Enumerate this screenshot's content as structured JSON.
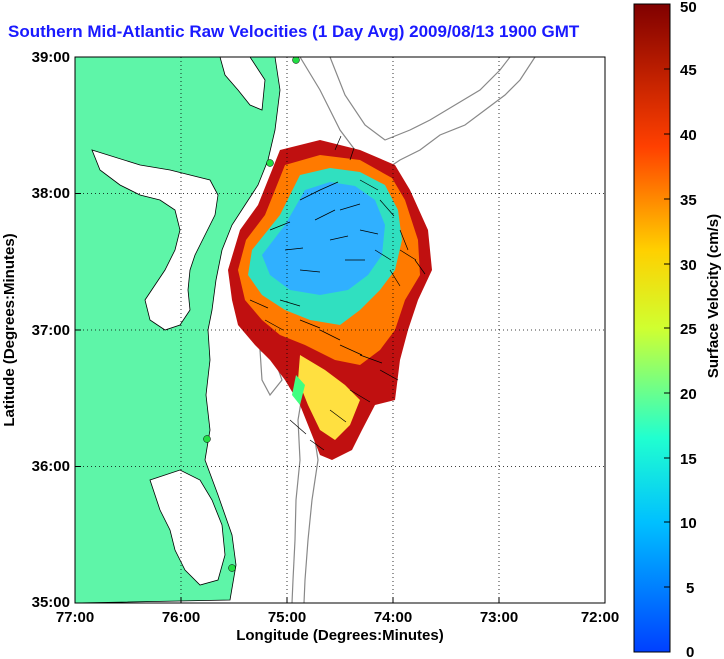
{
  "title": "Southern Mid-Atlantic Raw Velocities (1 Day Avg) 2009/08/13 1900 GMT",
  "map": {
    "x_axis": {
      "label": "Longitude (Degrees:Minutes)",
      "ticks": [
        "77:00",
        "76:00",
        "75:00",
        "74:00",
        "73:00",
        "72:00"
      ]
    },
    "y_axis": {
      "label": "Latitude (Degrees:Minutes)",
      "ticks": [
        "39:00",
        "38:00",
        "37:00",
        "36:00",
        "35:00"
      ]
    },
    "land_color": "#5ef5a8",
    "ocean_color": "#ffffff",
    "grid": "dotted"
  },
  "colorbar": {
    "label": "Surface Velocity (cm/s)",
    "ticks": [
      "50",
      "45",
      "40",
      "35",
      "30",
      "25",
      "20",
      "15",
      "10",
      "5",
      "0"
    ],
    "range": [
      0,
      50
    ],
    "colormap": "jet"
  }
}
